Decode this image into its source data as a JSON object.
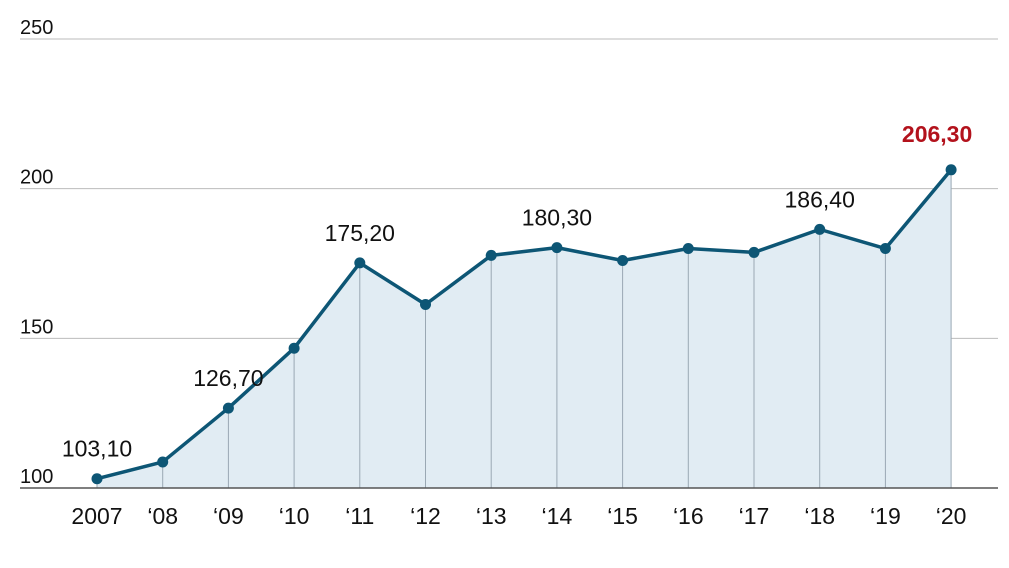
{
  "chart_data": {
    "type": "line",
    "categories": [
      "2007",
      "‘08",
      "‘09",
      "‘10",
      "‘11",
      "‘12",
      "‘13",
      "‘14",
      "‘15",
      "‘16",
      "‘17",
      "‘18",
      "‘19",
      "‘20"
    ],
    "values": [
      103.1,
      108.7,
      126.7,
      146.7,
      175.2,
      161.3,
      177.7,
      180.3,
      176.0,
      180.0,
      178.7,
      186.4,
      180.0,
      206.3
    ],
    "value_labels": [
      "103,10",
      null,
      "126,70",
      null,
      "175,20",
      null,
      null,
      "180,30",
      null,
      null,
      null,
      "186,40",
      null,
      "206,30"
    ],
    "color": "#0d5675",
    "area_color": "#e1ecf3",
    "highlight": "‘20",
    "highlight_color": "#b3121c",
    "ylim": [
      100,
      250
    ],
    "yticks": [
      100,
      150,
      200,
      250
    ],
    "grid": true
  }
}
